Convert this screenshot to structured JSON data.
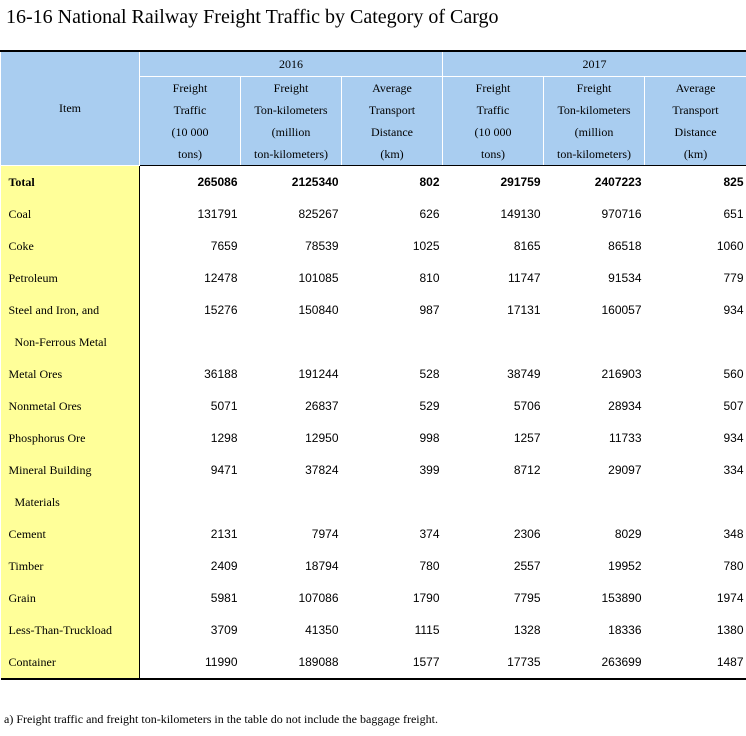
{
  "title": "16-16  National Railway Freight Traffic by Category of Cargo",
  "header": {
    "item": "Item",
    "year1": "2016",
    "year2": "2017",
    "columns": [
      [
        "Freight",
        "Traffic",
        "(10 000",
        "tons)"
      ],
      [
        "Freight",
        "Ton-kilometers",
        "(million",
        "ton-kilometers)"
      ],
      [
        "Average",
        "Transport",
        "Distance",
        "(km)"
      ],
      [
        "Freight",
        "Traffic",
        "(10 000",
        "tons)"
      ],
      [
        "Freight",
        "Ton-kilometers",
        "(million",
        "ton-kilometers)"
      ],
      [
        "Average",
        "Transport",
        "Distance",
        "(km)"
      ]
    ]
  },
  "rows": [
    {
      "item": "Total",
      "values": [
        "265086",
        "2125340",
        "802",
        "291759",
        "2407223",
        "825"
      ]
    },
    {
      "item": "Coal",
      "values": [
        "131791",
        "825267",
        "626",
        "149130",
        "970716",
        "651"
      ]
    },
    {
      "item": "Coke",
      "values": [
        "7659",
        "78539",
        "1025",
        "8165",
        "86518",
        "1060"
      ]
    },
    {
      "item": "Petroleum",
      "values": [
        "12478",
        "101085",
        "810",
        "11747",
        "91534",
        "779"
      ]
    },
    {
      "item": "Steel and Iron, and",
      "values": [
        "15276",
        "150840",
        "987",
        "17131",
        "160057",
        "934"
      ]
    },
    {
      "item": "Non-Ferrous Metal",
      "values": [
        "",
        "",
        "",
        "",
        "",
        ""
      ]
    },
    {
      "item": "Metal Ores",
      "values": [
        "36188",
        "191244",
        "528",
        "38749",
        "216903",
        "560"
      ]
    },
    {
      "item": "Nonmetal Ores",
      "values": [
        "5071",
        "26837",
        "529",
        "5706",
        "28934",
        "507"
      ]
    },
    {
      "item": "Phosphorus Ore",
      "values": [
        "1298",
        "12950",
        "998",
        "1257",
        "11733",
        "934"
      ]
    },
    {
      "item": "Mineral Building",
      "values": [
        "9471",
        "37824",
        "399",
        "8712",
        "29097",
        "334"
      ]
    },
    {
      "item": "Materials",
      "values": [
        "",
        "",
        "",
        "",
        "",
        ""
      ]
    },
    {
      "item": "Cement",
      "values": [
        "2131",
        "7974",
        "374",
        "2306",
        "8029",
        "348"
      ]
    },
    {
      "item": "Timber",
      "values": [
        "2409",
        "18794",
        "780",
        "2557",
        "19952",
        "780"
      ]
    },
    {
      "item": "Grain",
      "values": [
        "5981",
        "107086",
        "1790",
        "7795",
        "153890",
        "1974"
      ]
    },
    {
      "item": "Less-Than-Truckload",
      "values": [
        "3709",
        "41350",
        "1115",
        "1328",
        "18336",
        "1380"
      ]
    },
    {
      "item": "Container",
      "values": [
        "11990",
        "189088",
        "1577",
        "17735",
        "263699",
        "1487"
      ]
    }
  ],
  "note": "a) Freight traffic and freight ton-kilometers in the table do not include the baggage freight.",
  "colors": {
    "header_bg": "#a9cdf0",
    "item_bg": "#ffff99"
  }
}
